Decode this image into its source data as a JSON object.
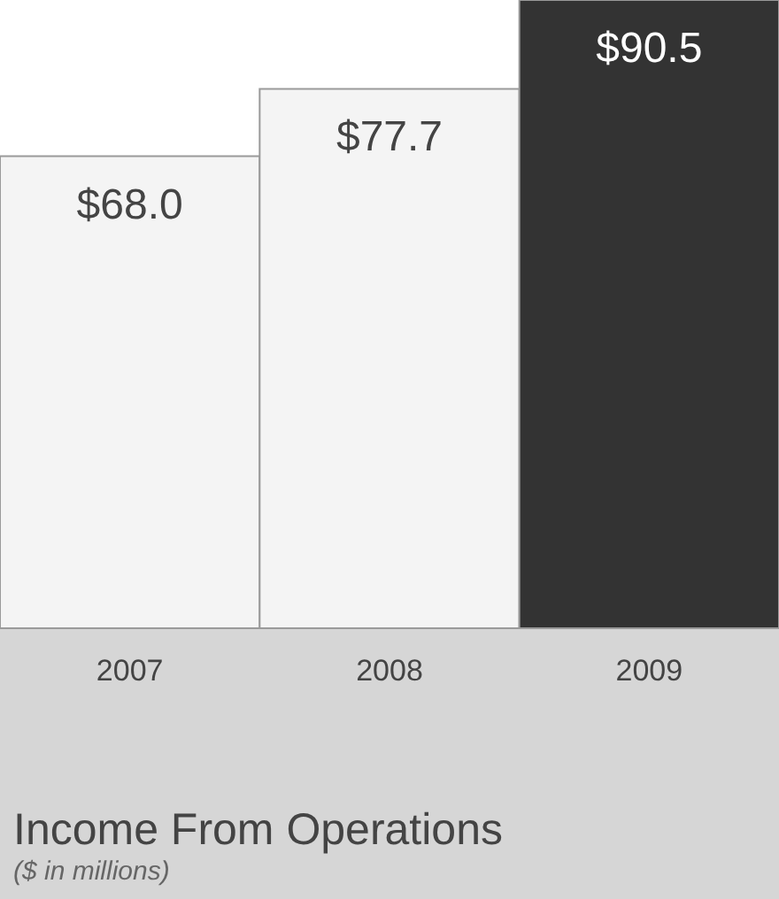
{
  "chart_data": {
    "type": "bar",
    "title": "Income From Operations",
    "subtitle": "($ in millions)",
    "categories": [
      "2007",
      "2008",
      "2009"
    ],
    "values": [
      68.0,
      77.7,
      90.5
    ],
    "colors": [
      "#f4f4f4",
      "#f4f4f4",
      "#333333"
    ],
    "value_labels": [
      "$68.0",
      "$77.7",
      "$90.5"
    ]
  }
}
